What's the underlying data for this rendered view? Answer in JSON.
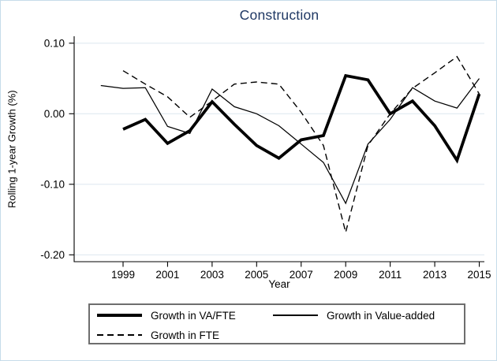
{
  "title": "Construction",
  "colors": {
    "title": "#1f3864",
    "axis": "#000000",
    "gridline": "#e1eaf1",
    "figure_border": "#c6dcea",
    "legend_border": "#6e6e6e",
    "series": "#000000"
  },
  "chart_data": {
    "type": "line",
    "title": "Construction",
    "xlabel": "Year",
    "ylabel": "Rolling 1-year Growth (%)",
    "xlim": [
      1996.8,
      2015.25
    ],
    "ylim": [
      -0.21,
      0.112
    ],
    "grid": true,
    "legend_position": "bottom-box",
    "xticks": [
      1999,
      2001,
      2003,
      2005,
      2007,
      2009,
      2011,
      2013,
      2015
    ],
    "xtick_labels": [
      "1999",
      "2001",
      "2003",
      "2005",
      "2007",
      "2009",
      "2011",
      "2013",
      "2015"
    ],
    "yticks": [
      0.1,
      0.0,
      -0.1,
      -0.2
    ],
    "ytick_labels": [
      "0.10",
      "0.00",
      "-0.10",
      "-0.20"
    ],
    "x": [
      1998,
      1999,
      2000,
      2001,
      2002,
      2003,
      2004,
      2005,
      2006,
      2007,
      2008,
      2009,
      2010,
      2011,
      2012,
      2013,
      2014,
      2015
    ],
    "series": [
      {
        "name": "Growth in VA/FTE",
        "style": "thick-solid",
        "values": [
          null,
          -0.022,
          -0.008,
          -0.042,
          -0.024,
          0.017,
          -0.015,
          -0.045,
          -0.063,
          -0.037,
          -0.031,
          0.054,
          0.048,
          0.0,
          0.018,
          -0.017,
          -0.066,
          0.028
        ]
      },
      {
        "name": "Growth in Value-added",
        "style": "thin-solid",
        "values": [
          0.04,
          0.036,
          0.037,
          -0.018,
          -0.028,
          0.035,
          0.01,
          0.0,
          -0.017,
          -0.043,
          -0.069,
          -0.127,
          -0.043,
          -0.008,
          0.037,
          0.018,
          0.008,
          0.05
        ]
      },
      {
        "name": "Growth in FTE",
        "style": "dashed",
        "values": [
          null,
          0.061,
          0.042,
          0.024,
          -0.005,
          0.018,
          0.042,
          0.045,
          0.042,
          0.002,
          -0.045,
          -0.168,
          -0.045,
          0.0,
          0.036,
          0.058,
          0.081,
          0.028
        ]
      }
    ]
  },
  "legend": {
    "items": [
      {
        "label": "Growth in VA/FTE",
        "style": "thick-solid"
      },
      {
        "label": "Growth in Value-added",
        "style": "thin-solid"
      },
      {
        "label": "Growth in FTE",
        "style": "dashed"
      }
    ]
  }
}
